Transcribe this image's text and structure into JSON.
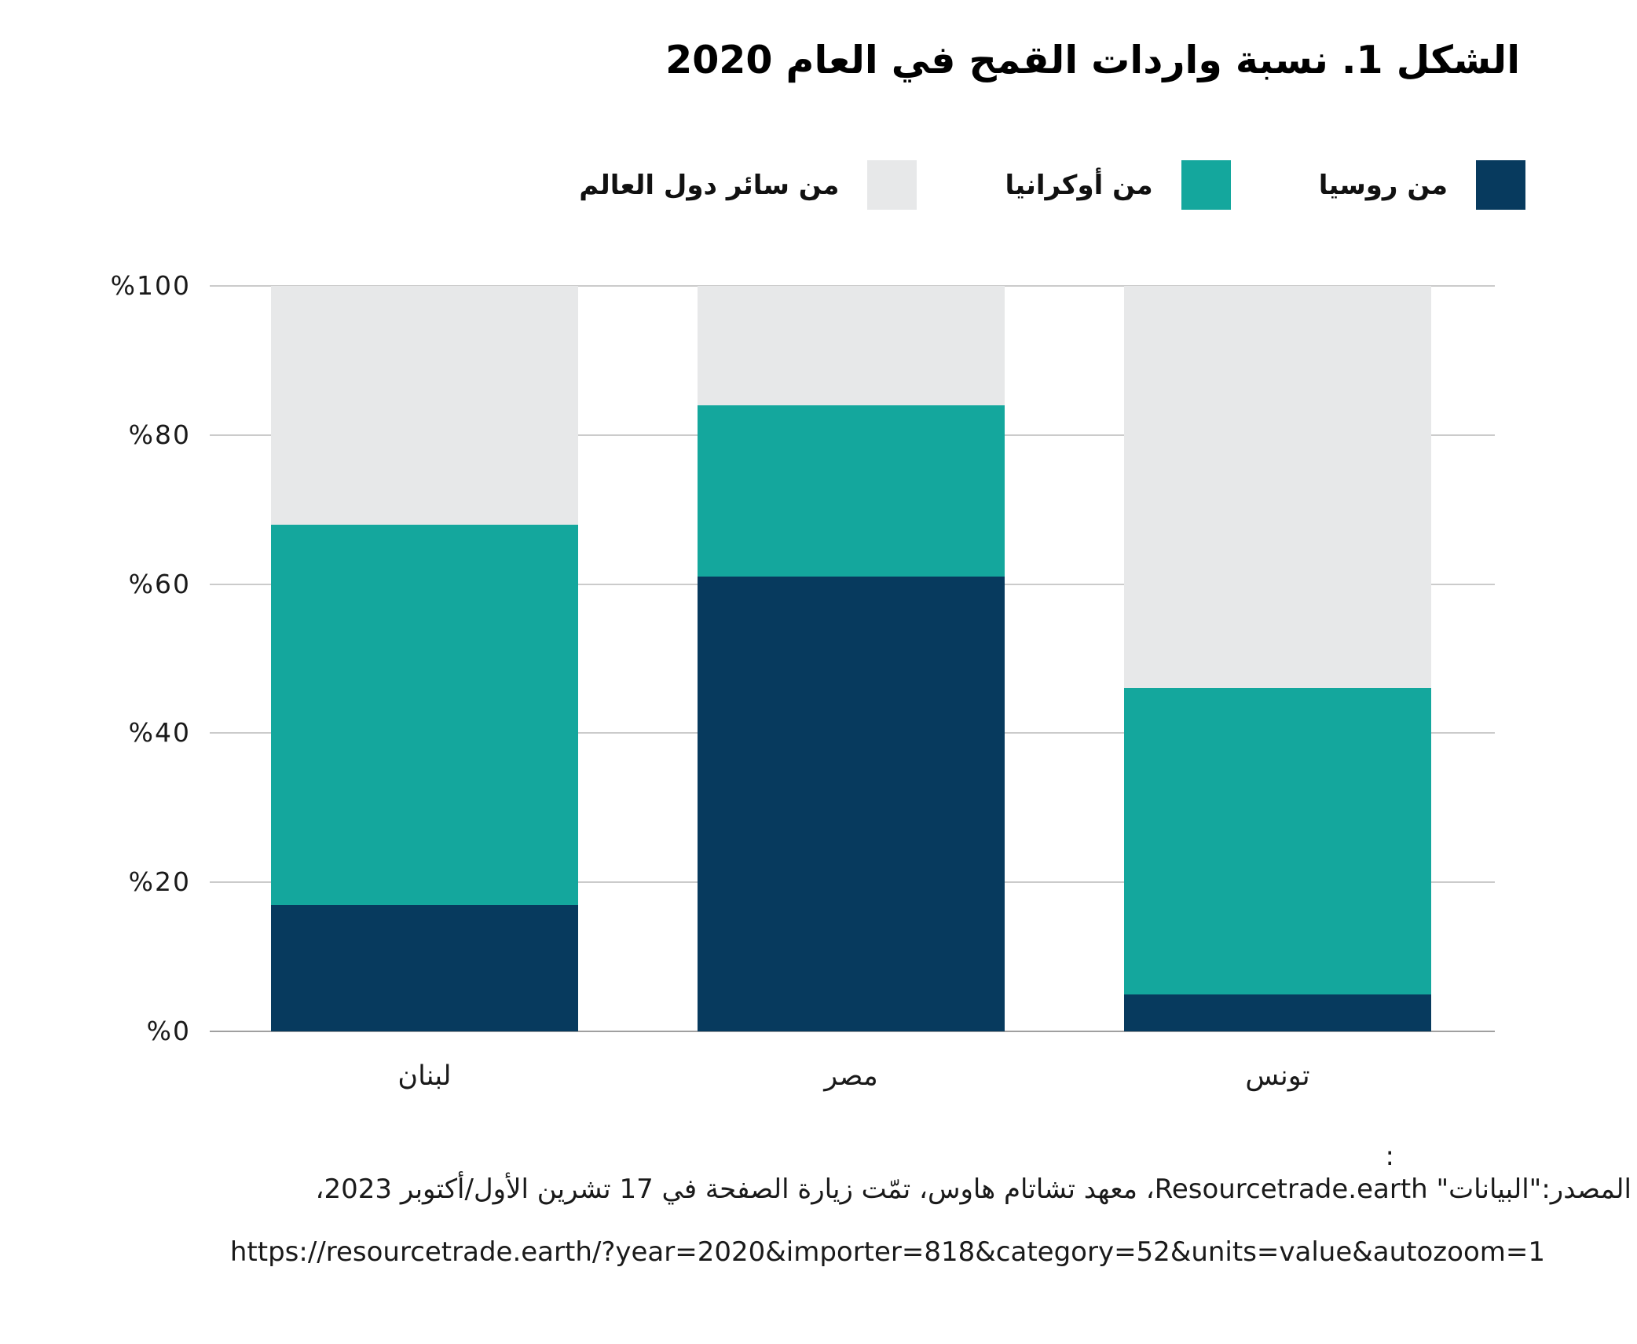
{
  "title": "الشكل 1. نسبة واردات القمح في العام 2020",
  "legend": [
    {
      "id": "russia",
      "label": "من روسيا",
      "color": "#073A5E"
    },
    {
      "id": "ukraine",
      "label": "من أوكرانيا",
      "color": "#14A79D"
    },
    {
      "id": "world",
      "label": "من سائر دول العالم",
      "color": "#E7E8E9"
    }
  ],
  "chart_data": {
    "type": "bar",
    "stacked": true,
    "unit": "%",
    "title": "الشكل 1. نسبة واردات القمح في العام 2020",
    "categories": [
      "لبنان",
      "مصر",
      "تونس"
    ],
    "series": [
      {
        "name": "من روسيا",
        "color": "#073A5E",
        "values": [
          17,
          61,
          5
        ]
      },
      {
        "name": "من أوكرانيا",
        "color": "#14A79D",
        "values": [
          51,
          23,
          41
        ]
      },
      {
        "name": "من سائر دول العالم",
        "color": "#E7E8E9",
        "values": [
          32,
          16,
          54
        ]
      }
    ],
    "ylim": [
      0,
      100
    ],
    "yticks": [
      {
        "value": 0,
        "label": "%0"
      },
      {
        "value": 20,
        "label": "%20"
      },
      {
        "value": 40,
        "label": "%40"
      },
      {
        "value": 60,
        "label": "%60"
      },
      {
        "value": 80,
        "label": "%80"
      },
      {
        "value": 100,
        "label": "%100"
      }
    ],
    "grid": true,
    "legend_position": "top-right"
  },
  "source": {
    "colon": ":",
    "line1": "المصدر:\"البيانات\" Resourcetrade.earth، معهد تشاتام هاوس، تمّت زيارة الصفحة في 17 تشرين الأول/أكتوبر 2023،",
    "url": "https://resourcetrade.earth/?year=2020&importer=818&category=52&units=value&autozoom=1"
  },
  "colors": {
    "gridline": "#CBCBCB",
    "axis": "#A0A0A0"
  }
}
